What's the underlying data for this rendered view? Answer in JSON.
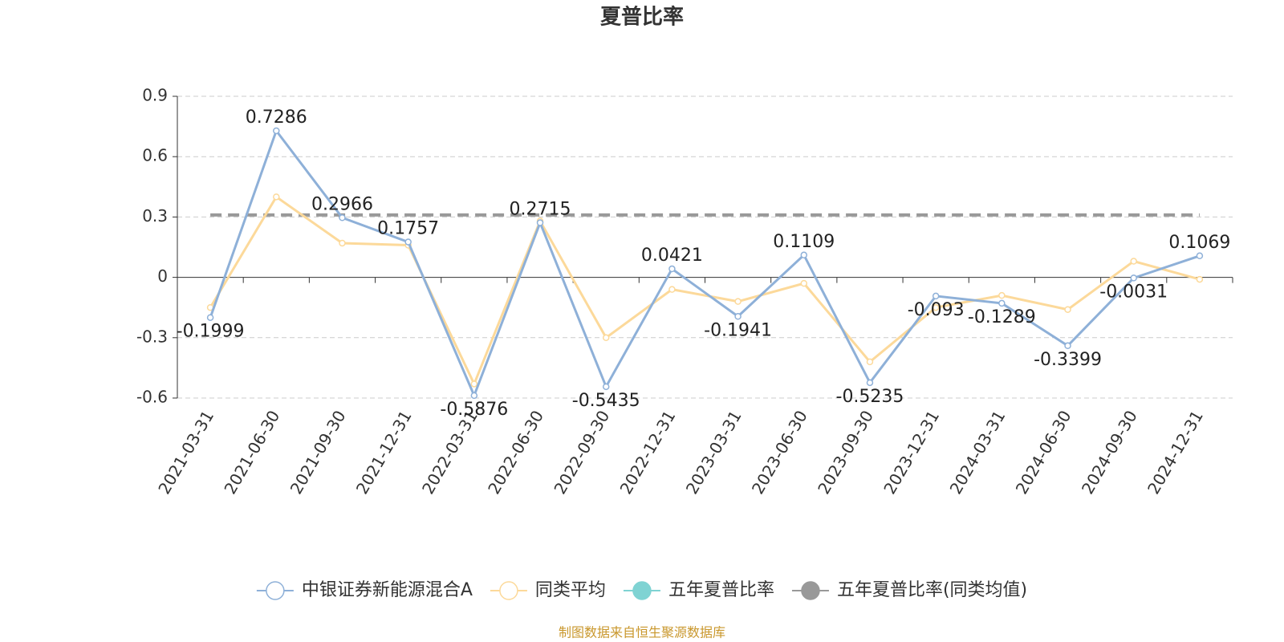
{
  "chart_data": {
    "type": "line",
    "title": "夏普比率",
    "categories": [
      "2021-03-31",
      "2021-06-30",
      "2021-09-30",
      "2021-12-31",
      "2022-03-31",
      "2022-06-30",
      "2022-09-30",
      "2022-12-31",
      "2023-03-31",
      "2023-06-30",
      "2023-09-30",
      "2023-12-31",
      "2024-03-31",
      "2024-06-30",
      "2024-09-30",
      "2024-12-31"
    ],
    "series": [
      {
        "name": "中银证券新能源混合A",
        "color": "#8eb0d8",
        "markers": true,
        "data_labels": true,
        "values": [
          -0.1999,
          0.7286,
          0.2966,
          0.1757,
          -0.5876,
          0.2715,
          -0.5435,
          0.0421,
          -0.1941,
          0.1109,
          -0.5235,
          -0.093,
          -0.1289,
          -0.3399,
          -0.0031,
          0.1069
        ]
      },
      {
        "name": "同类平均",
        "color": "#fcd99a",
        "markers": true,
        "values": [
          -0.15,
          0.4,
          0.17,
          0.16,
          -0.53,
          0.28,
          -0.3,
          -0.06,
          -0.12,
          -0.03,
          -0.42,
          -0.15,
          -0.09,
          -0.16,
          0.08,
          -0.01
        ]
      },
      {
        "name": "五年夏普比率",
        "color": "#7fd3d3",
        "values": [
          null,
          null,
          null,
          null,
          null,
          null,
          null,
          null,
          null,
          null,
          null,
          null,
          null,
          null,
          null,
          null
        ]
      },
      {
        "name": "五年夏普比率(同类均值)",
        "color": "#999999",
        "line_style": "dashed",
        "values": [
          0.31,
          0.31,
          0.31,
          0.31,
          0.31,
          0.31,
          0.31,
          0.31,
          0.31,
          0.31,
          0.31,
          0.31,
          0.31,
          0.31,
          0.31,
          0.31
        ]
      }
    ],
    "ylim": [
      -0.6,
      0.9
    ],
    "yticks": [
      0.9,
      0.6,
      0.3,
      0,
      -0.3,
      -0.6
    ],
    "grid": true,
    "legend": "bottom",
    "source": "制图数据来自恒生聚源数据库"
  }
}
